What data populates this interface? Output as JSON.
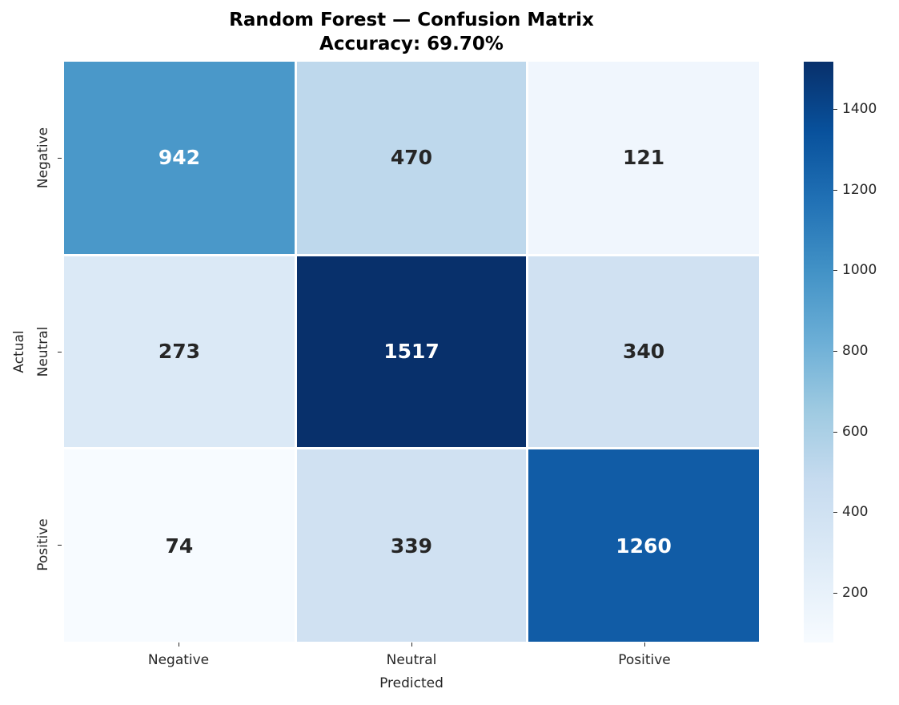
{
  "title": {
    "line1": "Random Forest — Confusion Matrix",
    "line2": "Accuracy: 69.70%"
  },
  "axes": {
    "xlabel": "Predicted",
    "ylabel": "Actual",
    "xticks": [
      "Negative",
      "Neutral",
      "Positive"
    ],
    "yticks": [
      "Negative",
      "Neutral",
      "Positive"
    ]
  },
  "cells": [
    {
      "row": 0,
      "col": 0,
      "value": "942",
      "bg": "#4a98c9",
      "fg": "#ffffff"
    },
    {
      "row": 0,
      "col": 1,
      "value": "470",
      "bg": "#bed8ec",
      "fg": "#262626"
    },
    {
      "row": 0,
      "col": 2,
      "value": "121",
      "bg": "#f0f6fd",
      "fg": "#262626"
    },
    {
      "row": 1,
      "col": 0,
      "value": "273",
      "bg": "#dbe9f6",
      "fg": "#262626"
    },
    {
      "row": 1,
      "col": 1,
      "value": "1517",
      "bg": "#08306b",
      "fg": "#ffffff"
    },
    {
      "row": 1,
      "col": 2,
      "value": "340",
      "bg": "#d0e1f2",
      "fg": "#262626"
    },
    {
      "row": 2,
      "col": 0,
      "value": "74",
      "bg": "#f7fbff",
      "fg": "#262626"
    },
    {
      "row": 2,
      "col": 1,
      "value": "339",
      "bg": "#d0e1f2",
      "fg": "#262626"
    },
    {
      "row": 2,
      "col": 2,
      "value": "1260",
      "bg": "#115ca6",
      "fg": "#ffffff"
    }
  ],
  "colorbar": {
    "ticks": [
      "200",
      "400",
      "600",
      "800",
      "1000",
      "1200",
      "1400"
    ],
    "min": 74,
    "max": 1517,
    "cmap": "Blues"
  },
  "chart_data": {
    "type": "heatmap",
    "title": "Random Forest — Confusion Matrix\nAccuracy: 69.70%",
    "xlabel": "Predicted",
    "ylabel": "Actual",
    "x_categories": [
      "Negative",
      "Neutral",
      "Positive"
    ],
    "y_categories": [
      "Negative",
      "Neutral",
      "Positive"
    ],
    "values": [
      [
        942,
        470,
        121
      ],
      [
        273,
        1517,
        340
      ],
      [
        74,
        339,
        1260
      ]
    ],
    "colorbar": {
      "label": "",
      "ticks": [
        200,
        400,
        600,
        800,
        1000,
        1200,
        1400
      ],
      "range": [
        74,
        1517
      ],
      "cmap": "Blues"
    },
    "annotations": "cell counts shown in bold",
    "accuracy": "69.70%"
  }
}
